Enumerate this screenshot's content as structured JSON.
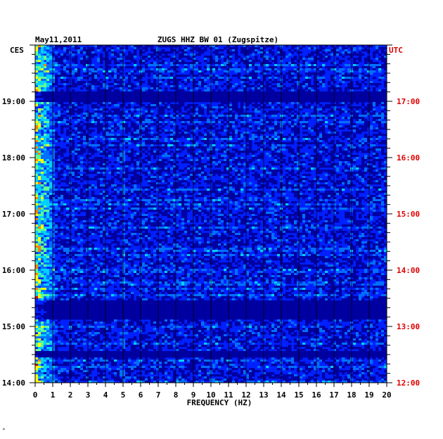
{
  "chart_data": {
    "type": "heatmap",
    "title": "ZUGS HHZ BW 01 (Zugspitze)",
    "date": "May11,2011",
    "xlabel": "FREQUENCY (HZ)",
    "x_ticks": [
      "0",
      "1",
      "2",
      "3",
      "4",
      "5",
      "6",
      "7",
      "8",
      "9",
      "10",
      "11",
      "12",
      "13",
      "14",
      "15",
      "16",
      "17",
      "18",
      "19",
      "20"
    ],
    "xlim": [
      0,
      20
    ],
    "left_axis": {
      "label": "CES",
      "ticks": [
        "19:00",
        "18:00",
        "17:00",
        "16:00",
        "15:00",
        "14:00"
      ],
      "color": "#000000"
    },
    "right_axis": {
      "label": "UTC",
      "ticks": [
        "17:00",
        "16:00",
        "15:00",
        "14:00",
        "13:00",
        "12:00"
      ],
      "color": "#dd0000"
    },
    "time_range_utc": [
      "12:00",
      "18:00"
    ],
    "colorscale": [
      "#0000a0",
      "#0020ff",
      "#0070ff",
      "#00d0ff",
      "#60ff90",
      "#ffff00",
      "#ff8000",
      "#d00000"
    ],
    "features": [
      {
        "description": "strong low-frequency energy below 1 Hz throughout",
        "freq_hz": [
          0,
          1
        ]
      },
      {
        "description": "quiet (dark) band",
        "time_utc": [
          "16:55",
          "17:05"
        ]
      },
      {
        "description": "quiet band",
        "time_utc": [
          "13:25",
          "13:45"
        ]
      }
    ]
  },
  "footer": {
    "mark": "*"
  }
}
